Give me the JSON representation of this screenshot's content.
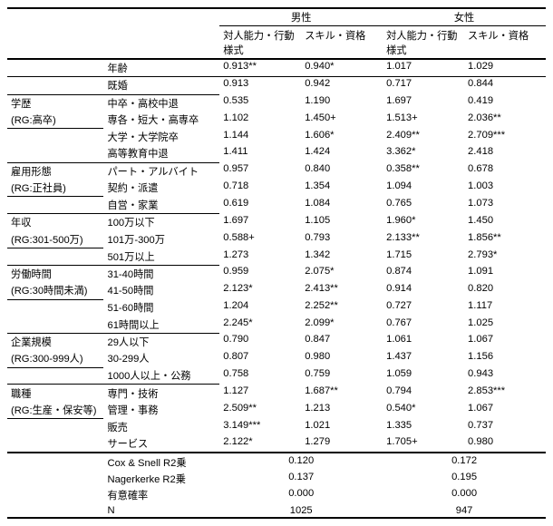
{
  "header": {
    "male": "男性",
    "female": "女性",
    "col1": "対人能力・行動様式",
    "col2": "スキル・資格"
  },
  "groups": [
    {
      "g1": "",
      "rows": [
        {
          "g2": "年齢",
          "m1": "0.913**",
          "m2": "0.940*",
          "f1": "1.017",
          "f2": "1.029"
        },
        {
          "g2": "既婚",
          "m1": "0.913",
          "m2": "0.942",
          "f1": "0.717",
          "f2": "0.844"
        }
      ]
    },
    {
      "g1": "学歴",
      "rg": "(RG:高卒)",
      "rows": [
        {
          "g2": "中卒・高校中退",
          "m1": "0.535",
          "m2": "1.190",
          "f1": "1.697",
          "f2": "0.419"
        },
        {
          "g2": "専各・短大・高専卒",
          "m1": "1.102",
          "m2": "1.450+",
          "f1": "1.513+",
          "f2": "2.036**"
        },
        {
          "g2": "大学・大学院卒",
          "m1": "1.144",
          "m2": "1.606*",
          "f1": "2.409**",
          "f2": "2.709***"
        },
        {
          "g2": "高等教育中退",
          "m1": "1.411",
          "m2": "1.424",
          "f1": "3.362*",
          "f2": "2.418"
        }
      ]
    },
    {
      "g1": "雇用形態",
      "rg": "(RG:正社員)",
      "rows": [
        {
          "g2": "パート・アルバイト",
          "m1": "0.957",
          "m2": "0.840",
          "f1": "0.358**",
          "f2": "0.678"
        },
        {
          "g2": "契約・派遣",
          "m1": "0.718",
          "m2": "1.354",
          "f1": "1.094",
          "f2": "1.003"
        },
        {
          "g2": "自営・家業",
          "m1": "0.619",
          "m2": "1.084",
          "f1": "0.765",
          "f2": "1.073"
        }
      ]
    },
    {
      "g1": "年収",
      "rg": "(RG:301-500万)",
      "rows": [
        {
          "g2": "100万以下",
          "m1": "1.697",
          "m2": "1.105",
          "f1": "1.960*",
          "f2": "1.450"
        },
        {
          "g2": "101万-300万",
          "m1": "0.588+",
          "m2": "0.793",
          "f1": "2.133**",
          "f2": "1.856**"
        },
        {
          "g2": "501万以上",
          "m1": "1.273",
          "m2": "1.342",
          "f1": "1.715",
          "f2": "2.793*"
        }
      ]
    },
    {
      "g1": "労働時間",
      "rg": "(RG:30時間未満)",
      "rows": [
        {
          "g2": "31-40時間",
          "m1": "0.959",
          "m2": "2.075*",
          "f1": "0.874",
          "f2": "1.091"
        },
        {
          "g2": "41-50時間",
          "m1": "2.123*",
          "m2": "2.413**",
          "f1": "0.914",
          "f2": "0.820"
        },
        {
          "g2": "51-60時間",
          "m1": "1.204",
          "m2": "2.252**",
          "f1": "0.727",
          "f2": "1.117"
        },
        {
          "g2": "61時間以上",
          "m1": "2.245*",
          "m2": "2.099*",
          "f1": "0.767",
          "f2": "1.025"
        }
      ]
    },
    {
      "g1": "企業規模",
      "rg": "(RG:300-999人)",
      "rows": [
        {
          "g2": "29人以下",
          "m1": "0.790",
          "m2": "0.847",
          "f1": "1.061",
          "f2": "1.067"
        },
        {
          "g2": "30-299人",
          "m1": "0.807",
          "m2": "0.980",
          "f1": "1.437",
          "f2": "1.156"
        },
        {
          "g2": "1000人以上・公務",
          "m1": "0.758",
          "m2": "0.759",
          "f1": "1.059",
          "f2": "0.943"
        }
      ]
    },
    {
      "g1": "職種",
      "rg": "(RG:生産・保安等)",
      "rows": [
        {
          "g2": "専門・技術",
          "m1": "1.127",
          "m2": "1.687**",
          "f1": "0.794",
          "f2": "2.853***"
        },
        {
          "g2": "管理・事務",
          "m1": "2.509**",
          "m2": "1.213",
          "f1": "0.540*",
          "f2": "1.067"
        },
        {
          "g2": "販売",
          "m1": "3.149***",
          "m2": "1.021",
          "f1": "1.335",
          "f2": "0.737"
        },
        {
          "g2": "サービス",
          "m1": "2.122*",
          "m2": "1.279",
          "f1": "1.705+",
          "f2": "0.980"
        }
      ]
    }
  ],
  "stats": {
    "coxsnell_label": "Cox & Snell R2乗",
    "nagel_label": "Nagerkerke R2乗",
    "sig_label": "有意確率",
    "n_label": "N",
    "coxsnell_m": "0.120",
    "coxsnell_f": "0.172",
    "nagel_m": "0.137",
    "nagel_f": "0.195",
    "sig_m": "0.000",
    "sig_f": "0.000",
    "n_m": "1025",
    "n_f": "947"
  }
}
